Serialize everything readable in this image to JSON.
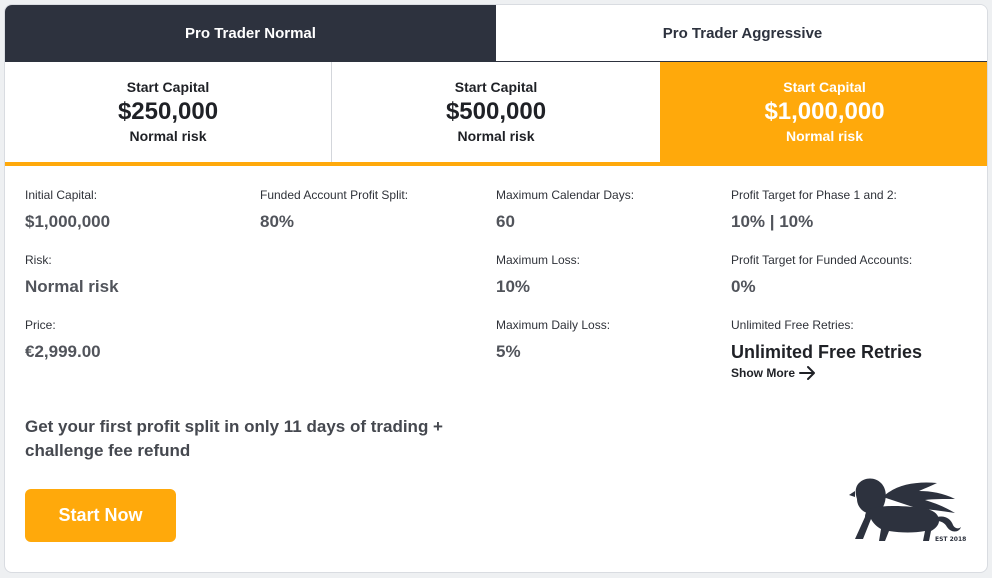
{
  "tabs": [
    {
      "label": "Pro Trader Normal",
      "active": true
    },
    {
      "label": "Pro Trader Aggressive",
      "active": false
    }
  ],
  "plans": [
    {
      "label": "Start Capital",
      "value": "$250,000",
      "risk": "Normal risk",
      "selected": false
    },
    {
      "label": "Start Capital",
      "value": "$500,000",
      "risk": "Normal risk",
      "selected": false
    },
    {
      "label": "Start Capital",
      "value": "$1,000,000",
      "risk": "Normal risk",
      "selected": true
    }
  ],
  "details": {
    "initial_capital": {
      "label": "Initial Capital:",
      "value": "$1,000,000"
    },
    "risk": {
      "label": "Risk:",
      "value": "Normal risk"
    },
    "price": {
      "label": "Price:",
      "value": "€2,999.00"
    },
    "profit_split": {
      "label": "Funded Account Profit Split:",
      "value": "80%"
    },
    "calendar_days": {
      "label": "Maximum Calendar Days:",
      "value": "60"
    },
    "max_loss": {
      "label": "Maximum Loss:",
      "value": "10%"
    },
    "max_daily_loss": {
      "label": "Maximum Daily Loss:",
      "value": "5%"
    },
    "profit_target_phases": {
      "label": "Profit Target for Phase 1 and 2:",
      "value": "10% | 10%"
    },
    "profit_target_funded": {
      "label": "Profit Target for Funded Accounts:",
      "value": "0%"
    },
    "free_retries": {
      "label": "Unlimited Free Retries:",
      "value": "Unlimited Free Retries"
    }
  },
  "show_more": {
    "label": "Show More",
    "icon": "arrow-right-icon"
  },
  "promo": {
    "text": "Get your first profit split in only 11 days of trading + challenge fee refund"
  },
  "cta": {
    "label": "Start Now"
  },
  "logo": {
    "icon": "winged-lion-logo",
    "est": "EST 2018"
  },
  "colors": {
    "accent": "#ffa90b",
    "dark": "#2d323e",
    "text": "#1f2126"
  }
}
